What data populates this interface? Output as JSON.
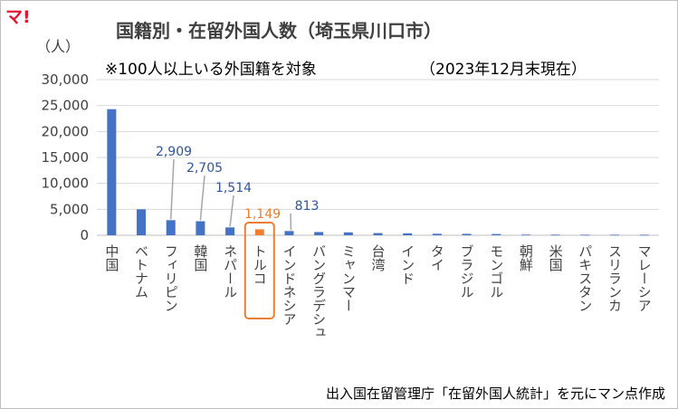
{
  "logo": "マ!",
  "chart_data": {
    "type": "bar",
    "title": "国籍別・在留外国人数（埼玉県川口市）",
    "subtitle": "※100人以上いる外国籍を対象",
    "period": "（2023年12月末現在）",
    "ylabel": "（人）",
    "source": "出入国在留管理庁「在留外国人統計」を元にマン点作成",
    "ylim": [
      0,
      30000
    ],
    "yticks": [
      "0",
      "5,000",
      "10,000",
      "15,000",
      "20,000",
      "25,000",
      "30,000"
    ],
    "categories": [
      "中国",
      "ベトナム",
      "フィリピン",
      "韓国",
      "ネパール",
      "トルコ",
      "インドネシア",
      "バングラデシュ",
      "ミャンマー",
      "台湾",
      "インド",
      "タイ",
      "ブラジル",
      "モンゴル",
      "朝鮮",
      "米国",
      "パキスタン",
      "スリランカ",
      "マレーシア"
    ],
    "values": [
      24300,
      5000,
      2909,
      2705,
      1514,
      1149,
      813,
      620,
      560,
      420,
      380,
      290,
      270,
      240,
      130,
      120,
      110,
      105,
      100
    ],
    "highlight_index": 5,
    "data_labels": [
      {
        "index": 2,
        "text": "2,909"
      },
      {
        "index": 3,
        "text": "2,705"
      },
      {
        "index": 4,
        "text": "1,514"
      },
      {
        "index": 5,
        "text": "1,149"
      },
      {
        "index": 6,
        "text": "813"
      }
    ],
    "colors": {
      "bar": "#4472c4",
      "highlight": "#ed7d31",
      "label": "#2f5597",
      "grid": "#d9d9d9",
      "leader": "#a6a6a6"
    }
  }
}
